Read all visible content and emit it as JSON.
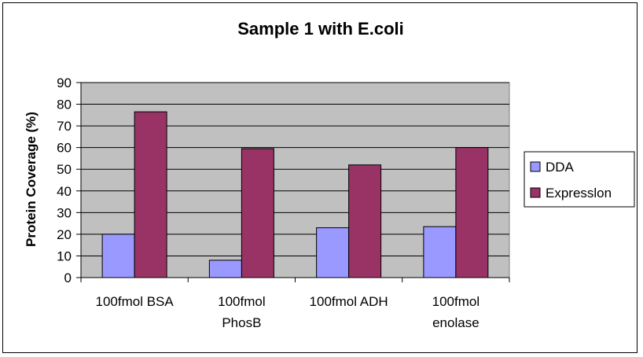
{
  "chart_data": {
    "type": "bar",
    "title": "Sample 1 with E.coli",
    "xlabel": "",
    "ylabel": "Protein Coverage (%)",
    "ylim": [
      0,
      90
    ],
    "yticks": [
      0,
      10,
      20,
      30,
      40,
      50,
      60,
      70,
      80,
      90
    ],
    "grid": true,
    "categories": [
      [
        "100fmol BSA"
      ],
      [
        "100fmol",
        "PhosB"
      ],
      [
        "100fmol ADH"
      ],
      [
        "100fmol",
        "enolase"
      ]
    ],
    "series": [
      {
        "name": "DDA",
        "values": [
          20,
          8,
          23,
          23.5
        ],
        "color": "#9999ff"
      },
      {
        "name": "Expresslon",
        "values": [
          76.5,
          59.5,
          52,
          60
        ],
        "color": "#993366"
      }
    ],
    "plot_background": "#c0c0c0",
    "legend_position": "right"
  }
}
